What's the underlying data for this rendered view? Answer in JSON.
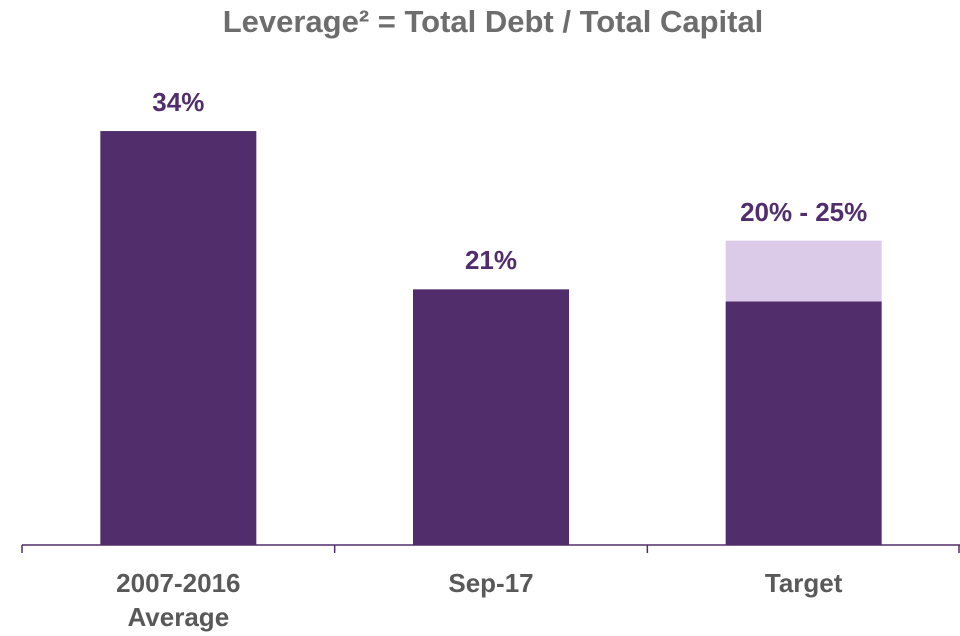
{
  "chart_data": {
    "type": "stacked_bar",
    "title": "Leverage² = Total Debt / Total Capital",
    "categories": [
      "2007-2016 Average",
      "Sep-17",
      "Target"
    ],
    "series": [
      {
        "color": "#522d6b",
        "values": [
          34,
          21,
          20
        ],
        "value_labels": [
          "34%",
          "21%",
          "20% - 25%"
        ]
      },
      {
        "color": "#dccbe8",
        "values": [
          null,
          null,
          5
        ]
      }
    ],
    "ylim": [
      0,
      40
    ]
  }
}
